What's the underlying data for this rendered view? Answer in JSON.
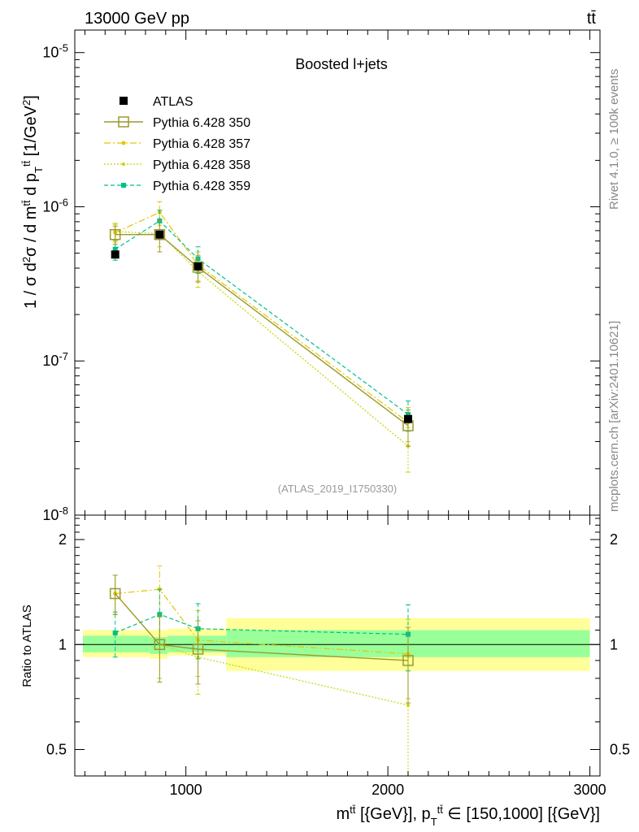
{
  "header": {
    "left": "13000 GeV pp",
    "right": "tt̄"
  },
  "side_labels": {
    "rivet": "Rivet 4.1.0, ≥ 100k events",
    "mcplots": "mcplots.cern.ch [arXiv:2401.10621]"
  },
  "colors": {
    "data": "#000000",
    "p350": "#9a9a2a",
    "p357": "#e8c400",
    "p358": "#c8d400",
    "p359": "#00c08a",
    "band_inner": "#99ff99",
    "band_outer": "#ffff99"
  },
  "chart_data": [
    {
      "type": "scatter",
      "panel": "main",
      "title": "Boosted l+jets",
      "analysis_id": "(ATLAS_2019_I1750330)",
      "ylabel": "1 / σ d²σ / d m^tt̄ d p_T^tt̄ [1/GeV²]",
      "xlim": [
        450,
        3050
      ],
      "ylim": [
        1e-08,
        1.4e-05
      ],
      "yscale": "log",
      "ytick_labels": [
        "10^-5",
        "10^-6",
        "10^-7",
        "10^-8"
      ],
      "x": [
        650,
        870,
        1060,
        2100
      ],
      "series": [
        {
          "name": "ATLAS",
          "values": [
            4.9e-07,
            6.6e-07,
            4.1e-07,
            4.2e-08
          ],
          "errors": [
            2e-08,
            3e-08,
            2e-08,
            2e-09
          ]
        },
        {
          "name": "Pythia 6.428 350",
          "values": [
            6.6e-07,
            6.6e-07,
            4.05e-07,
            3.8e-08
          ],
          "errors": [
            9e-08,
            1.5e-07,
            8e-08,
            1e-08
          ]
        },
        {
          "name": "Pythia 6.428 357",
          "values": [
            6.8e-07,
            9.2e-07,
            4.2e-07,
            4e-08
          ],
          "errors": [
            9e-08,
            1.6e-07,
            9e-08,
            1e-08
          ]
        },
        {
          "name": "Pythia 6.428 358",
          "values": [
            6.9e-07,
            6.7e-07,
            3.8e-07,
            2.8e-08
          ],
          "errors": [
            9e-08,
            1.2e-07,
            8e-08,
            9e-09
          ]
        },
        {
          "name": "Pythia 6.428 359",
          "values": [
            5.3e-07,
            8.1e-07,
            4.6e-07,
            4.5e-08
          ],
          "errors": [
            8e-08,
            1.4e-07,
            9e-08,
            1e-08
          ]
        }
      ]
    },
    {
      "type": "scatter",
      "panel": "ratio",
      "ylabel": "Ratio to ATLAS",
      "xlabel": "m^tt̄ [{GeV}], p_T^tt̄ ∈ [150,1000] [{GeV}]",
      "xlim": [
        450,
        3050
      ],
      "ylim": [
        0.42,
        2.35
      ],
      "yscale": "log",
      "yticks": [
        0.5,
        1,
        2
      ],
      "ytick_labels": [
        "0.5",
        "1",
        "2"
      ],
      "xticks": [
        1000,
        2000,
        3000
      ],
      "xtick_labels": [
        "1000",
        "2000",
        "3000"
      ],
      "x": [
        650,
        870,
        1060,
        2100
      ],
      "bands": [
        {
          "xmin": 490,
          "xmax": 820,
          "inner": [
            0.95,
            1.06
          ],
          "outer": [
            0.92,
            1.1
          ]
        },
        {
          "xmin": 820,
          "xmax": 910,
          "inner": [
            0.94,
            1.05
          ],
          "outer": [
            0.91,
            1.1
          ]
        },
        {
          "xmin": 910,
          "xmax": 1200,
          "inner": [
            0.95,
            1.06
          ],
          "outer": [
            0.93,
            1.11
          ]
        },
        {
          "xmin": 1200,
          "xmax": 3000,
          "inner": [
            0.92,
            1.1
          ],
          "outer": [
            0.84,
            1.19
          ]
        }
      ],
      "series": [
        {
          "name": "Pythia 6.428 350",
          "values": [
            1.4,
            1.0,
            0.97,
            0.9
          ],
          "errors": [
            0.18,
            0.22,
            0.2,
            0.22
          ]
        },
        {
          "name": "Pythia 6.428 357",
          "values": [
            1.4,
            1.44,
            1.03,
            0.94
          ],
          "errors": [
            0.18,
            0.24,
            0.22,
            0.24
          ]
        },
        {
          "name": "Pythia 6.428 358",
          "values": [
            1.4,
            1.0,
            0.92,
            0.67
          ],
          "errors": [
            0.18,
            0.2,
            0.2,
            0.25
          ]
        },
        {
          "name": "Pythia 6.428 359",
          "values": [
            1.08,
            1.22,
            1.11,
            1.07
          ],
          "errors": [
            0.16,
            0.22,
            0.2,
            0.23
          ]
        }
      ]
    }
  ]
}
